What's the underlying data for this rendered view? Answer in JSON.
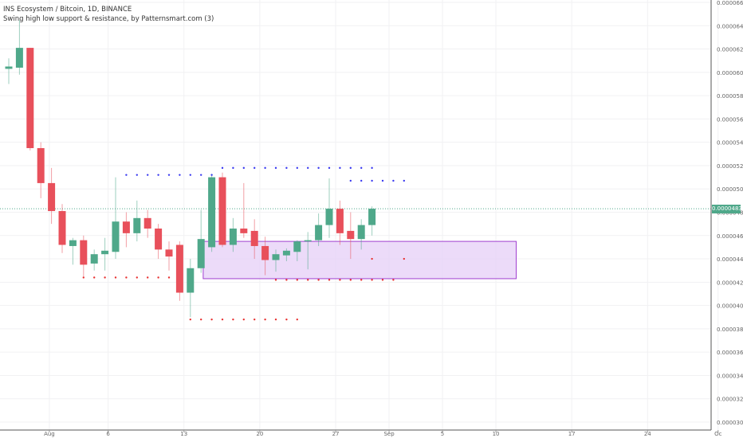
{
  "chart_data": {
    "type": "candlestick",
    "title": "INS Ecosystem / Bitcoin, 1D, BINANCE",
    "subtitle": "Swing high low support & resistance, by Patternsmart.com (3)",
    "last_price": "0.0000483",
    "y_range": [
      3e-05,
      6.6e-05
    ],
    "y_ticks": [
      "0.0000660",
      "0.0000640",
      "0.0000620",
      "0.0000600",
      "0.0000580",
      "0.0000560",
      "0.0000540",
      "0.0000520",
      "0.0000500",
      "0.0000480",
      "0.0000460",
      "0.0000440",
      "0.0000420",
      "0.0000400",
      "0.0000380",
      "0.0000360",
      "0.0000340",
      "0.0000320",
      "0.0000300"
    ],
    "x_ticks": [
      "Aug",
      "6",
      "13",
      "20",
      "27",
      "Sep",
      "5",
      "10",
      "17",
      "24",
      "Oc"
    ],
    "colors": {
      "up": "#4fa88a",
      "down": "#e8505b",
      "resistance_dot": "#3a3af0",
      "support_dot": "#e83030",
      "zone_fill": "#e6cff7",
      "zone_border": "#a040d0",
      "price_line": "#4fa88a",
      "axis_text": "#666666"
    },
    "candles": [
      {
        "o": 6.03e-05,
        "h": 6.12e-05,
        "l": 5.9e-05,
        "c": 6.05e-05
      },
      {
        "o": 6.04e-05,
        "h": 6.45e-05,
        "l": 5.98e-05,
        "c": 6.21e-05
      },
      {
        "o": 6.21e-05,
        "h": 6.21e-05,
        "l": 5.33e-05,
        "c": 5.35e-05
      },
      {
        "o": 5.35e-05,
        "h": 5.4e-05,
        "l": 4.92e-05,
        "c": 5.05e-05
      },
      {
        "o": 5.05e-05,
        "h": 5.18e-05,
        "l": 4.7e-05,
        "c": 4.81e-05
      },
      {
        "o": 4.81e-05,
        "h": 4.87e-05,
        "l": 4.45e-05,
        "c": 4.52e-05
      },
      {
        "o": 4.51e-05,
        "h": 4.58e-05,
        "l": 4.35e-05,
        "c": 4.56e-05
      },
      {
        "o": 4.56e-05,
        "h": 4.6e-05,
        "l": 4.25e-05,
        "c": 4.35e-05
      },
      {
        "o": 4.36e-05,
        "h": 4.48e-05,
        "l": 4.3e-05,
        "c": 4.44e-05
      },
      {
        "o": 4.44e-05,
        "h": 4.58e-05,
        "l": 4.3e-05,
        "c": 4.47e-05
      },
      {
        "o": 4.46e-05,
        "h": 5.1e-05,
        "l": 4.4e-05,
        "c": 4.72e-05
      },
      {
        "o": 4.72e-05,
        "h": 4.8e-05,
        "l": 4.5e-05,
        "c": 4.62e-05
      },
      {
        "o": 4.62e-05,
        "h": 4.9e-05,
        "l": 4.55e-05,
        "c": 4.75e-05
      },
      {
        "o": 4.75e-05,
        "h": 4.82e-05,
        "l": 4.58e-05,
        "c": 4.66e-05
      },
      {
        "o": 4.66e-05,
        "h": 4.7e-05,
        "l": 4.4e-05,
        "c": 4.48e-05
      },
      {
        "o": 4.48e-05,
        "h": 4.55e-05,
        "l": 4.3e-05,
        "c": 4.42e-05
      },
      {
        "o": 4.52e-05,
        "h": 4.55e-05,
        "l": 4.04e-05,
        "c": 4.11e-05
      },
      {
        "o": 4.11e-05,
        "h": 4.4e-05,
        "l": 3.9e-05,
        "c": 4.32e-05
      },
      {
        "o": 4.32e-05,
        "h": 4.82e-05,
        "l": 4.28e-05,
        "c": 4.57e-05
      },
      {
        "o": 4.5e-05,
        "h": 5.13e-05,
        "l": 4.46e-05,
        "c": 5.1e-05
      },
      {
        "o": 5.1e-05,
        "h": 5.14e-05,
        "l": 4.5e-05,
        "c": 4.52e-05
      },
      {
        "o": 4.52e-05,
        "h": 4.75e-05,
        "l": 4.46e-05,
        "c": 4.66e-05
      },
      {
        "o": 4.66e-05,
        "h": 5.05e-05,
        "l": 4.58e-05,
        "c": 4.62e-05
      },
      {
        "o": 4.64e-05,
        "h": 4.74e-05,
        "l": 4.4e-05,
        "c": 4.51e-05
      },
      {
        "o": 4.51e-05,
        "h": 4.59e-05,
        "l": 4.26e-05,
        "c": 4.39e-05
      },
      {
        "o": 4.39e-05,
        "h": 4.48e-05,
        "l": 4.29e-05,
        "c": 4.44e-05
      },
      {
        "o": 4.43e-05,
        "h": 4.49e-05,
        "l": 4.38e-05,
        "c": 4.47e-05
      },
      {
        "o": 4.46e-05,
        "h": 4.56e-05,
        "l": 4.38e-05,
        "c": 4.55e-05
      },
      {
        "o": 4.55e-05,
        "h": 4.63e-05,
        "l": 4.31e-05,
        "c": 4.56e-05
      },
      {
        "o": 4.56e-05,
        "h": 4.79e-05,
        "l": 4.51e-05,
        "c": 4.69e-05
      },
      {
        "o": 4.69e-05,
        "h": 5.09e-05,
        "l": 4.58e-05,
        "c": 4.83e-05
      },
      {
        "o": 4.83e-05,
        "h": 4.9e-05,
        "l": 4.52e-05,
        "c": 4.62e-05
      },
      {
        "o": 4.64e-05,
        "h": 4.8e-05,
        "l": 4.4e-05,
        "c": 4.57e-05
      },
      {
        "o": 4.57e-05,
        "h": 4.74e-05,
        "l": 4.48e-05,
        "c": 4.69e-05
      },
      {
        "o": 4.69e-05,
        "h": 4.85e-05,
        "l": 4.6e-05,
        "c": 4.83e-05
      }
    ],
    "resistance_dots": [
      {
        "from": 11,
        "to": 19,
        "price": 5.12e-05
      },
      {
        "from": 20,
        "to": 34,
        "price": 5.18e-05
      },
      {
        "from": 32,
        "to": 37,
        "price": 5.07e-05
      }
    ],
    "support_dots": [
      {
        "from": 7,
        "to": 15,
        "price": 4.24e-05
      },
      {
        "from": 17,
        "to": 27,
        "price": 3.88e-05
      },
      {
        "from": 25,
        "to": 36,
        "price": 4.22e-05
      }
    ],
    "extra_support_dots": [
      {
        "index": 34,
        "price": 4.4e-05
      },
      {
        "index": 37,
        "price": 4.4e-05
      }
    ],
    "support_zone": {
      "from_index": 18.2,
      "to_index": 47.5,
      "top": 4.55e-05,
      "bottom": 4.23e-05
    }
  }
}
